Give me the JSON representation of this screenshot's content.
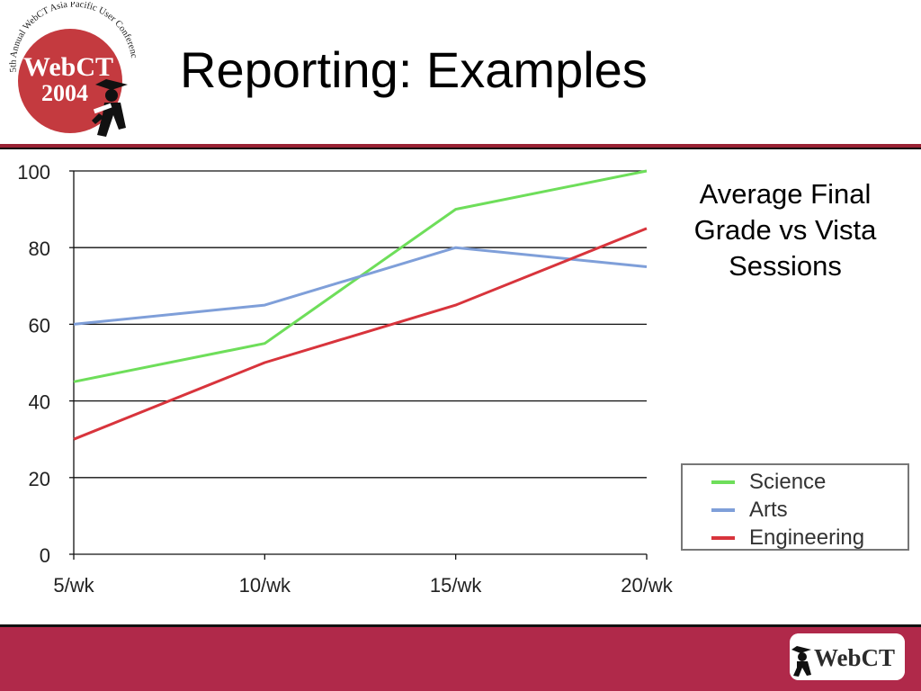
{
  "slide": {
    "title": "Reporting: Examples",
    "note": "Average Final Grade vs Vista Sessions"
  },
  "logo": {
    "arc_text": "5th Annual WebCT Asia Pacific User Conference",
    "brand": "WebCT",
    "year": "2004",
    "footer_brand": "WebCT"
  },
  "colors": {
    "accent": "#b0294a",
    "logo_red": "#c43a3f",
    "science": "#6ede5a",
    "arts": "#7f9fd9",
    "engineering": "#d8343c"
  },
  "chart_data": {
    "type": "line",
    "categories": [
      "5/wk",
      "10/wk",
      "15/wk",
      "20/wk"
    ],
    "series": [
      {
        "name": "Science",
        "values": [
          45,
          55,
          90,
          100
        ]
      },
      {
        "name": "Arts",
        "values": [
          60,
          65,
          80,
          75
        ]
      },
      {
        "name": "Engineering",
        "values": [
          30,
          50,
          65,
          85
        ]
      }
    ],
    "ylim": [
      0,
      100
    ],
    "yticks": [
      0,
      20,
      40,
      60,
      80,
      100
    ],
    "grid": "horizontal",
    "legend_position": "bottom-right"
  }
}
